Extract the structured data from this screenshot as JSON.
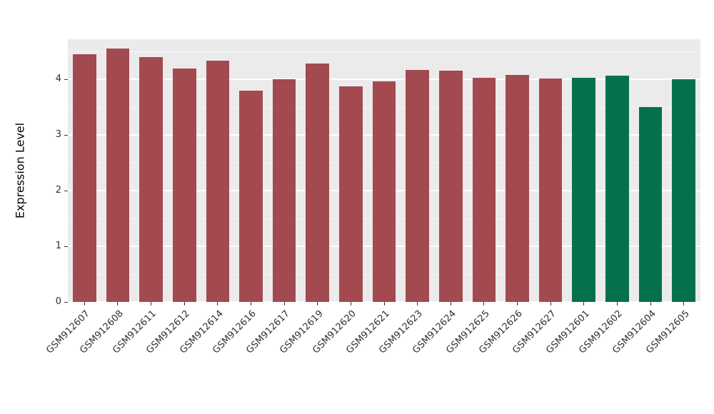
{
  "chart_data": {
    "type": "bar",
    "title": "",
    "xlabel": "",
    "ylabel": "Expression Level",
    "ylim": [
      0,
      4.72
    ],
    "yticks": [
      0,
      1,
      2,
      3,
      4
    ],
    "minor_ticks": [
      0.5,
      1.5,
      2.5,
      3.5,
      4.5
    ],
    "grid": "on",
    "legend": "none",
    "bars": [
      {
        "label": "GSM912607",
        "value": 4.45,
        "color": "#A34A50"
      },
      {
        "label": "GSM912608",
        "value": 4.55,
        "color": "#A34A50"
      },
      {
        "label": "GSM912611",
        "value": 4.4,
        "color": "#A34A50"
      },
      {
        "label": "GSM912612",
        "value": 4.2,
        "color": "#A34A50"
      },
      {
        "label": "GSM912614",
        "value": 4.33,
        "color": "#A34A50"
      },
      {
        "label": "GSM912616",
        "value": 3.8,
        "color": "#A34A50"
      },
      {
        "label": "GSM912617",
        "value": 4.0,
        "color": "#A34A50"
      },
      {
        "label": "GSM912619",
        "value": 4.28,
        "color": "#A34A50"
      },
      {
        "label": "GSM912620",
        "value": 3.88,
        "color": "#A34A50"
      },
      {
        "label": "GSM912621",
        "value": 3.96,
        "color": "#A34A50"
      },
      {
        "label": "GSM912623",
        "value": 4.17,
        "color": "#A34A50"
      },
      {
        "label": "GSM912624",
        "value": 4.15,
        "color": "#A34A50"
      },
      {
        "label": "GSM912625",
        "value": 4.03,
        "color": "#A34A50"
      },
      {
        "label": "GSM912626",
        "value": 4.08,
        "color": "#A34A50"
      },
      {
        "label": "GSM912627",
        "value": 4.02,
        "color": "#A34A50"
      },
      {
        "label": "GSM912601",
        "value": 4.03,
        "color": "#05714C"
      },
      {
        "label": "GSM912602",
        "value": 4.06,
        "color": "#05714C"
      },
      {
        "label": "GSM912604",
        "value": 3.5,
        "color": "#05714C"
      },
      {
        "label": "GSM912605",
        "value": 4.0,
        "color": "#05714C"
      }
    ],
    "style": {
      "panel_background": "#EBEBEB",
      "grid_color": "#FFFFFF",
      "group_colors": {
        "red_group": "#A34A50",
        "green_group": "#05714C"
      }
    }
  }
}
